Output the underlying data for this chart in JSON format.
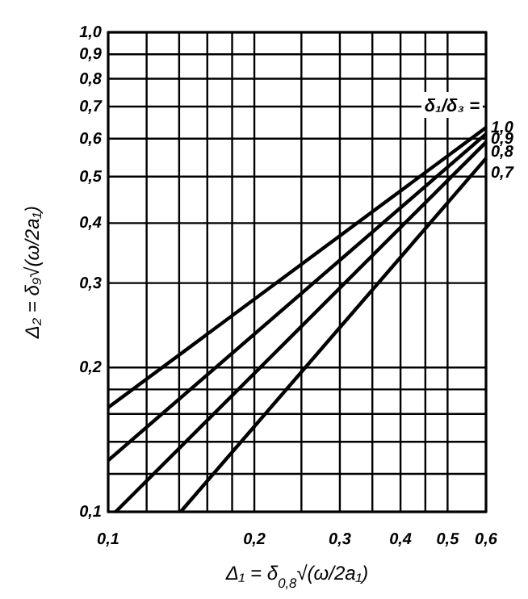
{
  "chart_data": {
    "type": "line",
    "xlabel": "Δ₁ = δ$_{0,8}$√(ω/2a₁)",
    "ylabel": "Δ₂ = δ₉√(ω/2a₁)",
    "legend_title": "δ₁/δ₃ =",
    "log": "xy",
    "grid": true,
    "marker": "none",
    "line_style": "solid",
    "xlim": [
      0.1,
      0.6
    ],
    "ylim": [
      0.1,
      1.0
    ],
    "xticks": [
      {
        "value": 0.1,
        "label": "0,1"
      },
      {
        "value": 0.12,
        "label": null
      },
      {
        "value": 0.14,
        "label": null
      },
      {
        "value": 0.16,
        "label": null
      },
      {
        "value": 0.18,
        "label": null
      },
      {
        "value": 0.2,
        "label": "0,2"
      },
      {
        "value": 0.25,
        "label": null
      },
      {
        "value": 0.3,
        "label": "0,3"
      },
      {
        "value": 0.35,
        "label": null
      },
      {
        "value": 0.4,
        "label": "0,4"
      },
      {
        "value": 0.45,
        "label": null
      },
      {
        "value": 0.5,
        "label": "0,5"
      },
      {
        "value": 0.6,
        "label": "0,6"
      }
    ],
    "yticks": [
      {
        "value": 0.1,
        "label": "0,1"
      },
      {
        "value": 0.12,
        "label": null
      },
      {
        "value": 0.14,
        "label": null
      },
      {
        "value": 0.16,
        "label": null
      },
      {
        "value": 0.18,
        "label": null
      },
      {
        "value": 0.2,
        "label": "0,2"
      },
      {
        "value": 0.3,
        "label": "0,3"
      },
      {
        "value": 0.4,
        "label": "0,4"
      },
      {
        "value": 0.5,
        "label": "0,5"
      },
      {
        "value": 0.6,
        "label": "0,6"
      },
      {
        "value": 0.7,
        "label": "0,7"
      },
      {
        "value": 0.8,
        "label": "0,8"
      },
      {
        "value": 0.9,
        "label": "0,9"
      },
      {
        "value": 1.0,
        "label": "1,0"
      }
    ],
    "series": [
      {
        "name": "1,0",
        "color": "#000000",
        "x": [
          0.1,
          0.6
        ],
        "values": [
          0.165,
          0.633
        ]
      },
      {
        "name": "0,9",
        "color": "#000000",
        "x": [
          0.1,
          0.6
        ],
        "values": [
          0.128,
          0.614
        ]
      },
      {
        "name": "0,8",
        "color": "#000000",
        "x": [
          0.1036,
          0.6
        ],
        "values": [
          0.1,
          0.59
        ]
      },
      {
        "name": "0,7",
        "color": "#000000",
        "x": [
          0.141,
          0.6
        ],
        "values": [
          0.1,
          0.546
        ]
      }
    ]
  }
}
